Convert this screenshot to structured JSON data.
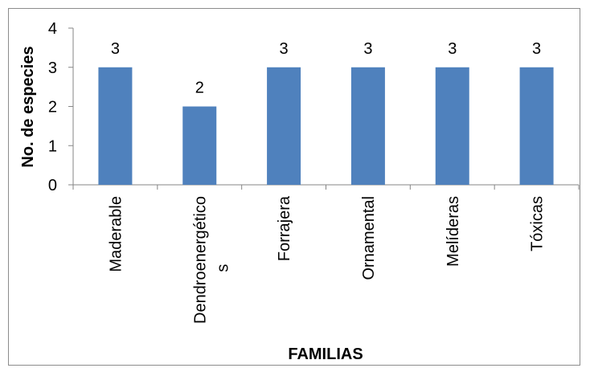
{
  "chart_data": {
    "type": "bar",
    "title": "",
    "xlabel": "FAMILIAS",
    "ylabel": "No. de especies",
    "ylim": [
      0,
      4
    ],
    "yticks": [
      0,
      1,
      2,
      3,
      4
    ],
    "grid": false,
    "legend": "none",
    "color": "#4f81bd",
    "categories": [
      [
        "Maderable"
      ],
      [
        "Dendroenergético",
        "s"
      ],
      [
        "Forrajera"
      ],
      [
        "Ornamental"
      ],
      [
        "Melíderas"
      ],
      [
        "Tóxicas"
      ]
    ],
    "values": [
      3,
      2,
      3,
      3,
      3,
      3
    ]
  }
}
